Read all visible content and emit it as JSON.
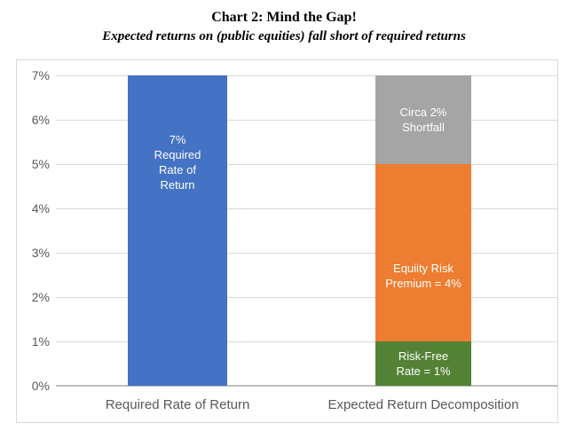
{
  "header": {
    "title": "Chart 2: Mind the Gap!",
    "subtitle": "Expected returns on (public equities) fall short of required returns"
  },
  "chart_data": {
    "type": "bar",
    "stacked": true,
    "title": "Chart 2: Mind the Gap!",
    "subtitle": "Expected returns on (public equities) fall short of required returns",
    "xlabel": "",
    "ylabel": "",
    "grid": true,
    "legend": "none",
    "y_axis": {
      "min": 0,
      "max": 7,
      "step": 1,
      "unit": "%",
      "tick_labels": [
        "0%",
        "1%",
        "2%",
        "3%",
        "4%",
        "5%",
        "6%",
        "7%"
      ]
    },
    "categories": [
      "Required Rate of Return",
      "Expected Return Decomposition"
    ],
    "bars": [
      {
        "category": "Required Rate of Return",
        "total": 7,
        "segments": [
          {
            "name": "required-rate-of-return",
            "value": 7,
            "color": "#4472C4",
            "label": "7%\nRequired\nRate of\nReturn"
          }
        ]
      },
      {
        "category": "Expected Return Decomposition",
        "total": 7,
        "segments": [
          {
            "name": "risk-free-rate",
            "value": 1,
            "color": "#548235",
            "label": "Risk-Free\nRate = 1%"
          },
          {
            "name": "equity-risk-premium",
            "value": 4,
            "color": "#ED7D31",
            "label": "Equiity Risk\nPremium = 4%"
          },
          {
            "name": "shortfall",
            "value": 2,
            "color": "#A5A5A5",
            "label": "Circa 2%\nShortfall"
          }
        ]
      }
    ],
    "colors": {
      "blue": "#4472C4",
      "green": "#548235",
      "orange": "#ED7D31",
      "gray": "#A5A5A5"
    },
    "text_color": "#595959",
    "gridline_color": "#D9D9D9",
    "axis_line_color": "#BFBFBF"
  }
}
